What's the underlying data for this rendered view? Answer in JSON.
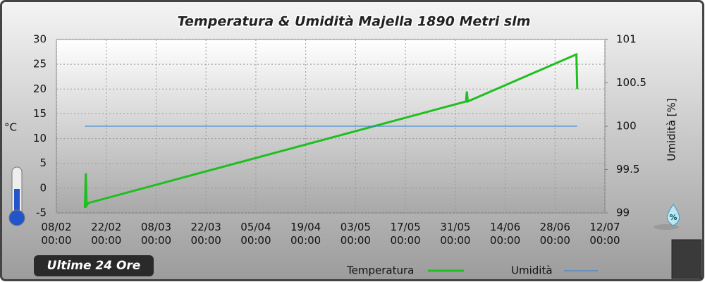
{
  "chart_data": {
    "type": "line",
    "title": "Temperatura & Umidità Majella 1890 Metri slm",
    "subtitle": "Ultime 24 Ore",
    "y_label": "°C",
    "y2_label": "Umidità [%]",
    "xlim": [
      "08/02 00:00",
      "12/07 00:00"
    ],
    "xticks": [
      "08/02\n00:00",
      "22/02\n00:00",
      "08/03\n00:00",
      "22/03\n00:00",
      "05/04\n00:00",
      "19/04\n00:00",
      "03/05\n00:00",
      "17/05\n00:00",
      "31/05\n00:00",
      "14/06\n00:00",
      "28/06\n00:00",
      "12/07\n00:00"
    ],
    "ylim": [
      -5,
      30
    ],
    "yticks": [
      -5,
      0,
      5,
      10,
      15,
      20,
      25,
      30
    ],
    "y2lim": [
      99,
      101
    ],
    "y2ticks": [
      99,
      99.5,
      100,
      100.5,
      101
    ],
    "grid": true,
    "series": [
      {
        "name": "Temperatura",
        "color": "#1fbf1f",
        "axis": "y",
        "x": [
          "16/02 00:00",
          "16/02 06:00",
          "16/02 12:00",
          "17/02 00:00",
          "03/06 00:00",
          "03/06 06:00",
          "03/06 12:00",
          "04/07 00:00",
          "04/07 06:00"
        ],
        "values": [
          -4,
          3,
          -3.5,
          -3,
          17.5,
          19.5,
          17.5,
          27,
          20
        ]
      },
      {
        "name": "Umidità",
        "color": "#2a7fd4",
        "axis": "y2",
        "x": [
          "16/02 00:00",
          "04/07 06:00"
        ],
        "values": [
          100,
          100
        ]
      }
    ]
  }
}
